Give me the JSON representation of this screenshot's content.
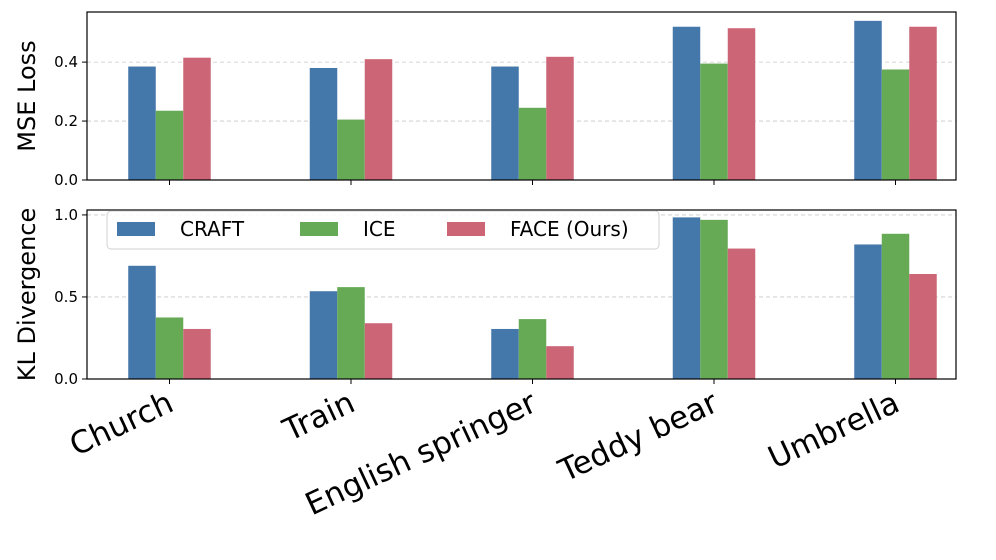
{
  "chart_data": {
    "type": "bar",
    "categories": [
      "Church",
      "Train",
      "English springer",
      "Teddy bear",
      "Umbrella"
    ],
    "legend": [
      "CRAFT",
      "ICE",
      "FACE (Ours)"
    ],
    "colors": {
      "CRAFT": "#4477aa",
      "ICE": "#66aa55",
      "FACE (Ours)": "#cc6677"
    },
    "legend_location": "upper-left of bottom panel",
    "grid": "horizontal dashed",
    "panels": [
      {
        "ylabel": "MSE Loss",
        "ylim": [
          0,
          0.57
        ],
        "yticks": [
          "0.0",
          "0.2",
          "0.4"
        ],
        "series": [
          {
            "name": "CRAFT",
            "values": [
              0.385,
              0.38,
              0.385,
              0.52,
              0.54
            ]
          },
          {
            "name": "ICE",
            "values": [
              0.235,
              0.205,
              0.245,
              0.395,
              0.375
            ]
          },
          {
            "name": "FACE (Ours)",
            "values": [
              0.415,
              0.41,
              0.418,
              0.515,
              0.52
            ]
          }
        ]
      },
      {
        "ylabel": "KL Divergence",
        "ylim": [
          0,
          1.03
        ],
        "yticks": [
          "0.0",
          "0.5",
          "1.0"
        ],
        "series": [
          {
            "name": "CRAFT",
            "values": [
              0.69,
              0.535,
              0.305,
              0.985,
              0.82
            ]
          },
          {
            "name": "ICE",
            "values": [
              0.375,
              0.56,
              0.365,
              0.97,
              0.885
            ]
          },
          {
            "name": "FACE (Ours)",
            "values": [
              0.305,
              0.34,
              0.2,
              0.795,
              0.64
            ]
          }
        ]
      }
    ]
  }
}
